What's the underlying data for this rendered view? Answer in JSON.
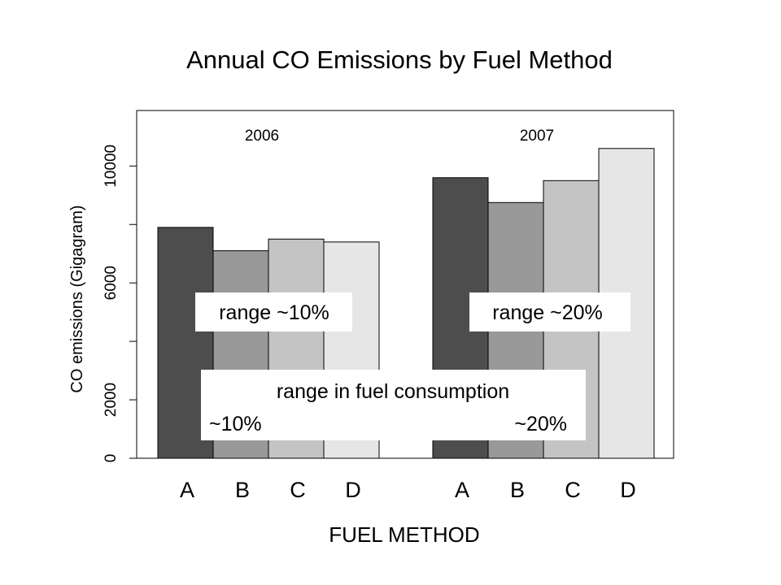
{
  "chart_data": {
    "type": "bar",
    "title": "Annual CO Emissions by Fuel Method",
    "xlabel": "FUEL METHOD",
    "ylabel": "CO emissions (Gigagram)",
    "ylim": [
      0,
      11900
    ],
    "y_ticks": [
      0,
      2000,
      4000,
      6000,
      8000,
      10000
    ],
    "y_tick_labels": [
      "0",
      "2000",
      "",
      "6000",
      "",
      "10000"
    ],
    "groups": [
      {
        "label": "2006",
        "categories": [
          "A",
          "B",
          "C",
          "D"
        ],
        "values": [
          7900,
          7100,
          7500,
          7400
        ]
      },
      {
        "label": "2007",
        "categories": [
          "A",
          "B",
          "C",
          "D"
        ],
        "values": [
          9600,
          8750,
          9500,
          10600
        ]
      }
    ],
    "bar_colors": [
      "#4d4d4d",
      "#999999",
      "#c4c4c4",
      "#e6e6e6"
    ],
    "grid": false,
    "annotations": [
      {
        "text": "range ~10%"
      },
      {
        "text": "range ~20%"
      },
      {
        "text": "range in fuel consumption"
      },
      {
        "text": "~10%"
      },
      {
        "text": "~20%"
      }
    ]
  }
}
